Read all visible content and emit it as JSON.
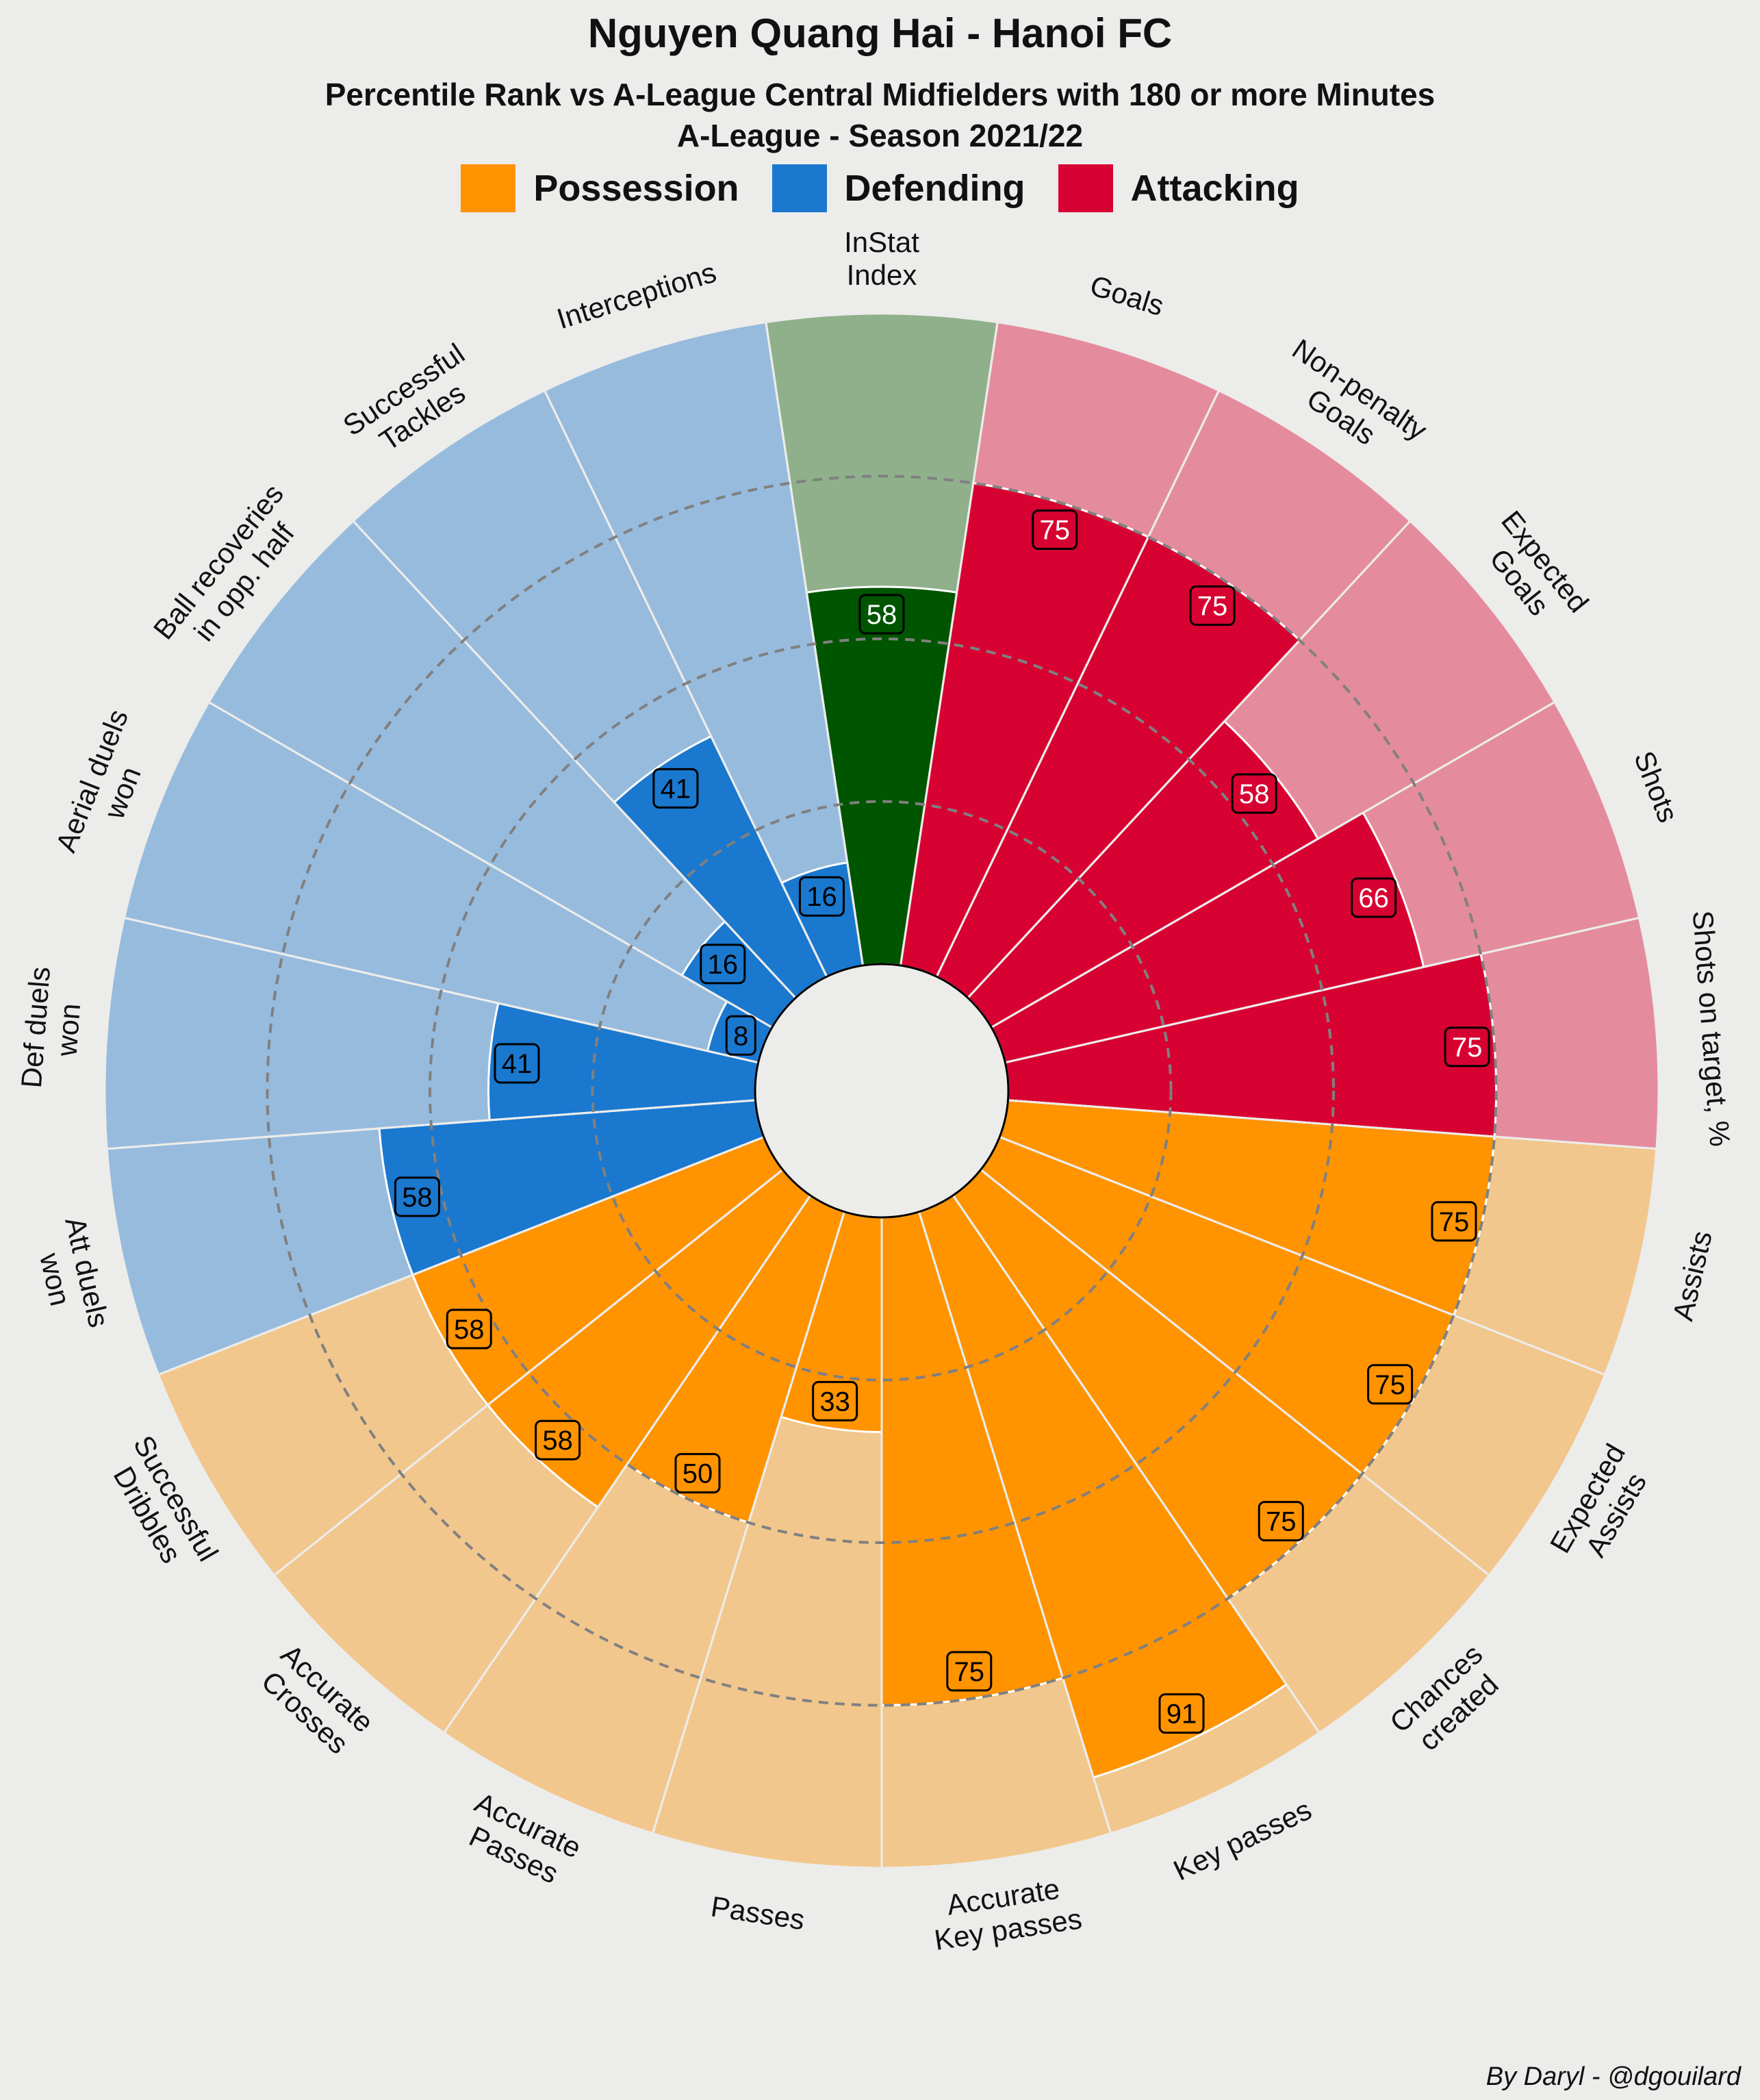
{
  "title": "Nguyen Quang Hai - Hanoi FC",
  "subtitle_line1": "Percentile Rank vs A-League Central Midfielders with 180 or more Minutes",
  "subtitle_line2": "A-League - Season 2021/22",
  "credit": "By Daryl - @dgouilard",
  "legend": [
    {
      "label": "Possession",
      "color": "#ff9300"
    },
    {
      "label": "Defending",
      "color": "#1a78cf"
    },
    {
      "label": "Attacking",
      "color": "#d70232"
    }
  ],
  "chart_data": {
    "type": "polar-bar",
    "title": "Nguyen Quang Hai - Hanoi FC",
    "value_range": [
      0,
      100
    ],
    "gridlines": [
      25,
      50,
      75
    ],
    "segments": [
      {
        "label": "InStat\nIndex",
        "value": 58,
        "group": "Other"
      },
      {
        "label": "Goals",
        "value": 75,
        "group": "Attacking"
      },
      {
        "label": "Non-penalty\nGoals",
        "value": 75,
        "group": "Attacking"
      },
      {
        "label": "Expected\nGoals",
        "value": 58,
        "group": "Attacking"
      },
      {
        "label": "Shots",
        "value": 66,
        "group": "Attacking"
      },
      {
        "label": "Shots on target, %",
        "value": 75,
        "group": "Attacking"
      },
      {
        "label": "Assists",
        "value": 75,
        "group": "Possession"
      },
      {
        "label": "Expected\nAssists",
        "value": 75,
        "group": "Possession"
      },
      {
        "label": "Chances\ncreated",
        "value": 75,
        "group": "Possession"
      },
      {
        "label": "Key passes",
        "value": 91,
        "group": "Possession"
      },
      {
        "label": "Accurate\nKey passes",
        "value": 75,
        "group": "Possession"
      },
      {
        "label": "Passes",
        "value": 33,
        "group": "Possession"
      },
      {
        "label": "Accurate\nPasses",
        "value": 50,
        "group": "Possession"
      },
      {
        "label": "Accurate\nCrosses",
        "value": 58,
        "group": "Possession"
      },
      {
        "label": "Successful\nDribbles",
        "value": 58,
        "group": "Possession"
      },
      {
        "label": "Att duels\nwon",
        "value": 58,
        "group": "Defending"
      },
      {
        "label": "Def duels\nwon",
        "value": 41,
        "group": "Defending"
      },
      {
        "label": "Aerial duels\nwon",
        "value": 8,
        "group": "Defending"
      },
      {
        "label": "Ball recoveries\nin opp. half",
        "value": 16,
        "group": "Defending"
      },
      {
        "label": "Successful\nTackles",
        "value": 41,
        "group": "Defending"
      },
      {
        "label": "Interceptions",
        "value": 16,
        "group": "Defending"
      }
    ],
    "colors": {
      "Attacking": {
        "slice": "#d70232",
        "background": "#e48c9d",
        "label_text": "#ffffff"
      },
      "Possession": {
        "slice": "#ff9300",
        "background": "#f2c78d",
        "label_text": "#000000"
      },
      "Defending": {
        "slice": "#1a78cf",
        "background": "#97bbdd",
        "label_text": "#000000"
      },
      "Other": {
        "slice": "#005500",
        "background": "#8fb08b",
        "label_text": "#ffffff"
      }
    }
  }
}
